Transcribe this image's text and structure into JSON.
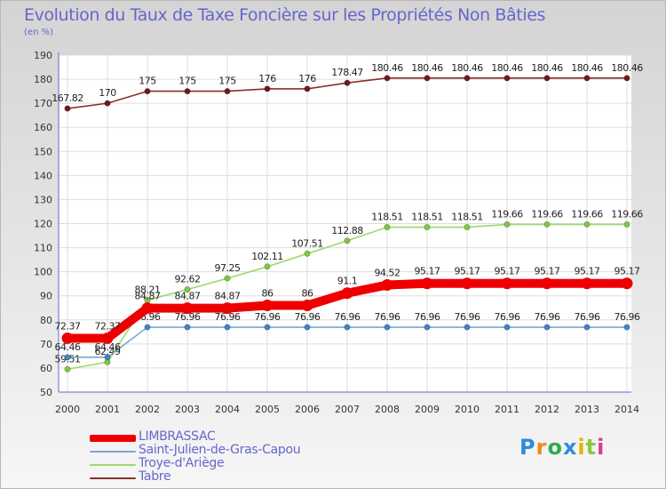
{
  "title": "Evolution du Taux de Taxe Foncière sur les Propriétés Non Bâties",
  "unit_label": "(en %)",
  "logo_text": "Proxiti",
  "chart_data": {
    "type": "line",
    "title": "Evolution du Taux de Taxe Foncière sur les Propriétés Non Bâties",
    "ylabel": "(en %)",
    "xlabel": "",
    "ylim": [
      50,
      190
    ],
    "y_ticks": [
      50,
      60,
      70,
      80,
      90,
      100,
      110,
      120,
      130,
      140,
      150,
      160,
      170,
      180,
      190
    ],
    "grid": true,
    "categories": [
      "2000",
      "2001",
      "2002",
      "2003",
      "2004",
      "2005",
      "2006",
      "2007",
      "2008",
      "2009",
      "2010",
      "2011",
      "2012",
      "2013",
      "2014"
    ],
    "series": [
      {
        "name": "Tabre",
        "color": "#8b2e2e",
        "marker": "#6e1a1a",
        "values": [
          167.82,
          170,
          175,
          175,
          175,
          176,
          176,
          178.47,
          180.46,
          180.46,
          180.46,
          180.46,
          180.46,
          180.46,
          180.46
        ],
        "labels": [
          "167.82",
          "170",
          "175",
          "175",
          "175",
          "176",
          "176",
          "178.47",
          "180.46",
          "180.46",
          "180.46",
          "180.46",
          "180.46",
          "180.46",
          "180.46"
        ]
      },
      {
        "name": "Troye-d'Ariège",
        "color": "#9fd86b",
        "marker": "#7ec843",
        "values": [
          59.51,
          62.49,
          88.21,
          92.62,
          97.25,
          102.11,
          107.51,
          112.88,
          118.51,
          118.51,
          118.51,
          119.66,
          119.66,
          119.66,
          119.66
        ],
        "labels": [
          "59.51",
          "62.49",
          "88.21",
          "92.62",
          "97.25",
          "102.11",
          "107.51",
          "112.88",
          "118.51",
          "118.51",
          "118.51",
          "119.66",
          "119.66",
          "119.66",
          "119.66"
        ]
      },
      {
        "name": "Saint-Julien-de-Gras-Capou",
        "color": "#7ba7d0",
        "marker": "#3f86c8",
        "values": [
          64.46,
          64.46,
          76.96,
          76.96,
          76.96,
          76.96,
          76.96,
          76.96,
          76.96,
          76.96,
          76.96,
          76.96,
          76.96,
          76.96,
          76.96
        ],
        "labels": [
          "64.46",
          "64.46",
          "76.96",
          "76.96",
          "76.96",
          "76.96",
          "76.96",
          "76.96",
          "76.96",
          "76.96",
          "76.96",
          "76.96",
          "76.96",
          "76.96",
          "76.96"
        ]
      },
      {
        "name": "LIMBRASSAC",
        "color": "#ee0000",
        "marker": "#ee0000",
        "values": [
          72.37,
          72.37,
          84.87,
          84.87,
          84.87,
          86,
          86,
          91.1,
          94.52,
          95.17,
          95.17,
          95.17,
          95.17,
          95.17,
          95.17
        ],
        "labels": [
          "72.37",
          "72.37",
          "84.87",
          "84.87",
          "84.87",
          "86",
          "86",
          "91.1",
          "94.52",
          "95.17",
          "95.17",
          "95.17",
          "95.17",
          "95.17",
          "95.17"
        ]
      }
    ],
    "legend": [
      "LIMBRASSAC",
      "Saint-Julien-de-Gras-Capou",
      "Troye-d'Ariège",
      "Tabre"
    ],
    "legend_position": "bottom-left"
  }
}
